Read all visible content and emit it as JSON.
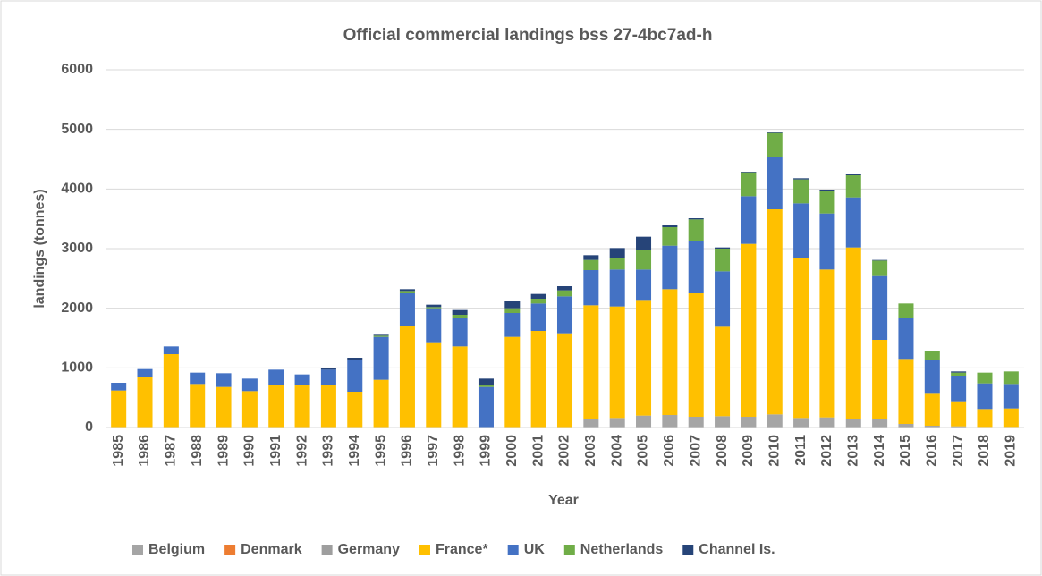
{
  "chart_data": {
    "type": "bar",
    "stacked": true,
    "title": "Official commercial landings bss 27-4bc7ad-h",
    "x_label": "Year",
    "y_label": "landings (tonnes)",
    "categories": [
      "1985",
      "1986",
      "1987",
      "1988",
      "1989",
      "1990",
      "1991",
      "1992",
      "1993",
      "1994",
      "1995",
      "1996",
      "1997",
      "1998",
      "1999",
      "2000",
      "2001",
      "2002",
      "2003",
      "2004",
      "2005",
      "2006",
      "2007",
      "2008",
      "2009",
      "2010",
      "2011",
      "2012",
      "2013",
      "2014",
      "2015",
      "2016",
      "2017",
      "2018",
      "2019"
    ],
    "series": [
      {
        "name": "Belgium",
        "color": "#a5a5a5",
        "values": [
          0,
          0,
          0,
          0,
          0,
          0,
          0,
          0,
          0,
          0,
          0,
          0,
          0,
          0,
          0,
          0,
          0,
          0,
          150,
          160,
          200,
          210,
          180,
          190,
          180,
          220,
          160,
          170,
          150,
          150,
          60,
          30,
          20,
          10,
          10
        ]
      },
      {
        "name": "Denmark",
        "color": "#ed7d31",
        "values": [
          0,
          0,
          0,
          0,
          0,
          0,
          0,
          0,
          0,
          0,
          0,
          0,
          0,
          0,
          0,
          0,
          0,
          0,
          0,
          0,
          0,
          0,
          0,
          0,
          0,
          0,
          0,
          0,
          0,
          0,
          0,
          0,
          0,
          0,
          0
        ]
      },
      {
        "name": "Germany",
        "color": "#9e9e9e",
        "values": [
          0,
          0,
          0,
          0,
          0,
          0,
          0,
          0,
          0,
          0,
          0,
          0,
          0,
          0,
          0,
          0,
          0,
          0,
          0,
          0,
          0,
          0,
          0,
          0,
          0,
          0,
          0,
          0,
          0,
          0,
          0,
          0,
          0,
          0,
          0
        ]
      },
      {
        "name": "France*",
        "color": "#ffc000",
        "values": [
          620,
          840,
          1230,
          730,
          680,
          610,
          720,
          720,
          720,
          600,
          800,
          1710,
          1430,
          1360,
          0,
          1520,
          1620,
          1580,
          1900,
          1870,
          1940,
          2110,
          2070,
          1500,
          2900,
          3440,
          2680,
          2480,
          2870,
          1320,
          1090,
          550,
          420,
          300,
          310
        ]
      },
      {
        "name": "UK",
        "color": "#4472c4",
        "values": [
          130,
          140,
          130,
          190,
          230,
          210,
          250,
          170,
          250,
          540,
          720,
          540,
          570,
          470,
          680,
          400,
          460,
          620,
          590,
          620,
          510,
          730,
          870,
          930,
          800,
          880,
          920,
          940,
          840,
          1070,
          690,
          560,
          430,
          430,
          410
        ]
      },
      {
        "name": "Netherlands",
        "color": "#70ad47",
        "values": [
          0,
          0,
          0,
          0,
          0,
          0,
          0,
          0,
          0,
          0,
          20,
          40,
          20,
          60,
          40,
          80,
          80,
          100,
          170,
          200,
          330,
          310,
          370,
          380,
          400,
          400,
          400,
          380,
          370,
          260,
          240,
          150,
          50,
          180,
          210
        ]
      },
      {
        "name": "Channel Is.",
        "color": "#264478",
        "values": [
          0,
          0,
          0,
          0,
          0,
          0,
          0,
          0,
          20,
          30,
          30,
          30,
          40,
          80,
          100,
          120,
          80,
          70,
          80,
          160,
          220,
          30,
          20,
          20,
          10,
          10,
          20,
          20,
          20,
          10,
          0,
          0,
          20,
          0,
          0
        ]
      }
    ],
    "ylim": [
      0,
      6000
    ],
    "yticks": [
      0,
      1000,
      2000,
      3000,
      4000,
      5000,
      6000
    ],
    "grid": true,
    "legend": "bottom"
  }
}
